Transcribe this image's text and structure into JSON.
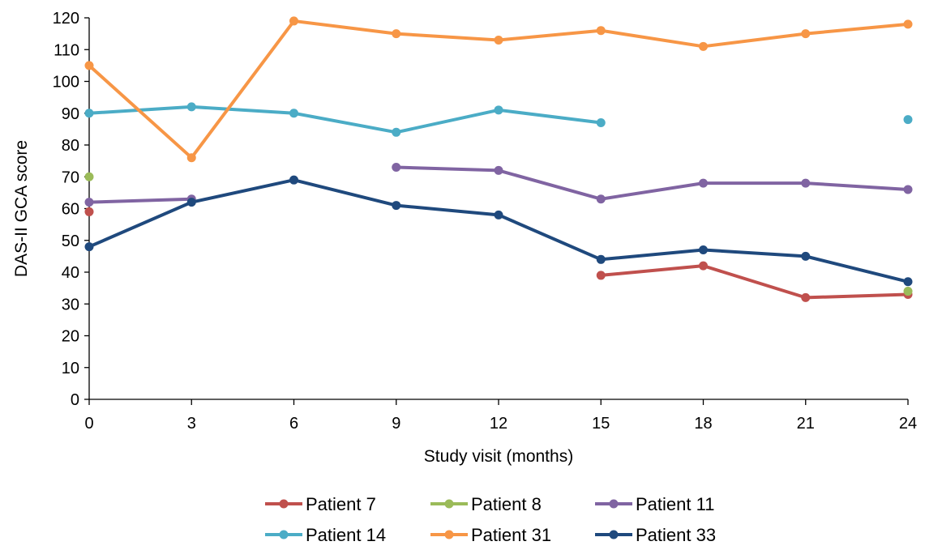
{
  "chart_data": {
    "type": "line",
    "xlabel": "Study visit (months)",
    "ylabel": "DAS-II GCA score",
    "x": [
      0,
      3,
      6,
      9,
      12,
      15,
      18,
      21,
      24
    ],
    "xticks": [
      "0",
      "3",
      "6",
      "9",
      "12",
      "15",
      "18",
      "21",
      "24"
    ],
    "ylim": [
      0,
      120
    ],
    "yticks": [
      "0",
      "10",
      "20",
      "30",
      "40",
      "50",
      "60",
      "70",
      "80",
      "90",
      "100",
      "110",
      "120"
    ],
    "grid": false,
    "legend_position": "bottom",
    "series": [
      {
        "name": "Patient 7",
        "color": "#C0504D",
        "values": [
          59,
          null,
          null,
          null,
          null,
          39,
          42,
          32,
          33
        ]
      },
      {
        "name": "Patient 8",
        "color": "#9BBB59",
        "values": [
          70,
          null,
          null,
          null,
          null,
          null,
          null,
          null,
          34
        ]
      },
      {
        "name": "Patient 11",
        "color": "#8064A2",
        "values": [
          62,
          63,
          null,
          73,
          72,
          63,
          68,
          68,
          66
        ]
      },
      {
        "name": "Patient 14",
        "color": "#4BACC6",
        "values": [
          90,
          92,
          90,
          84,
          91,
          87,
          null,
          null,
          88
        ]
      },
      {
        "name": "Patient 31",
        "color": "#F79646",
        "values": [
          105,
          76,
          119,
          115,
          113,
          116,
          111,
          115,
          118
        ]
      },
      {
        "name": "Patient 33",
        "color": "#1F497D",
        "values": [
          48,
          62,
          69,
          61,
          58,
          44,
          47,
          45,
          37
        ]
      }
    ]
  }
}
